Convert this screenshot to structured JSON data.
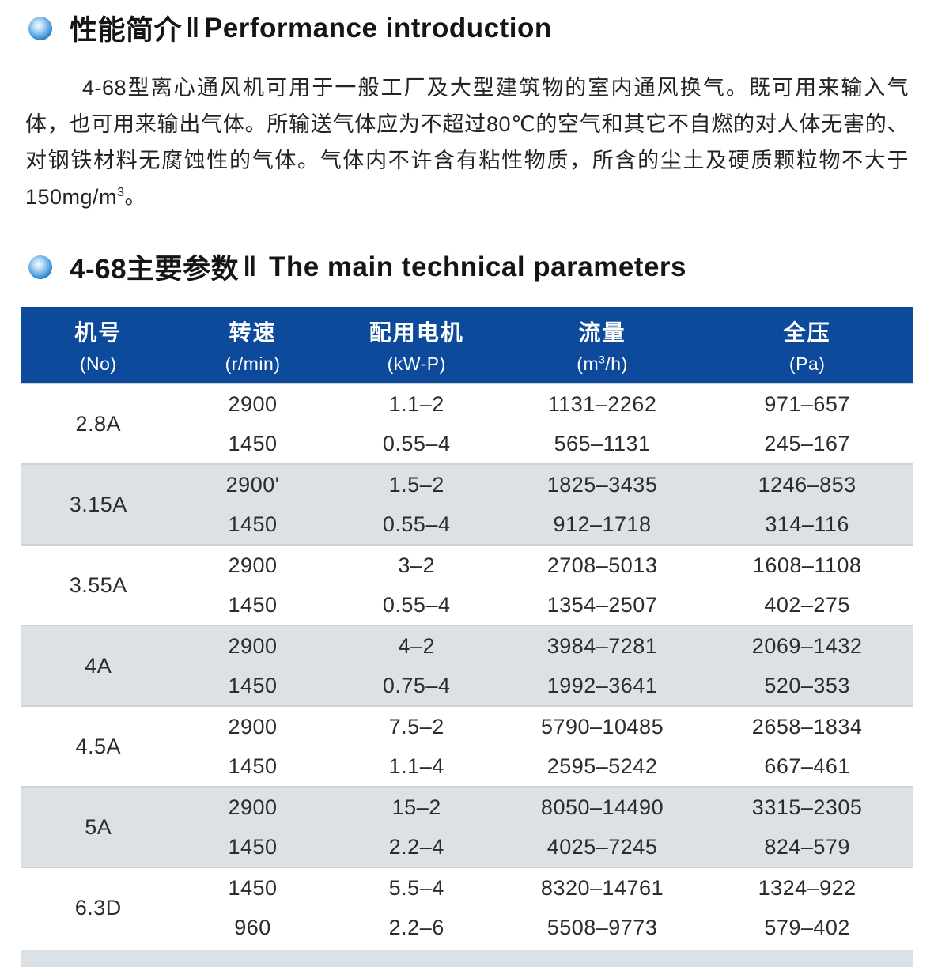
{
  "colors": {
    "header_blue": "#0e4a9c",
    "row_gray": "#dce1e5",
    "bullet_blue": "#0a4f96",
    "text": "#242424"
  },
  "section1": {
    "title_cn": "性能简介",
    "separator": "‖",
    "title_en": "Performance introduction"
  },
  "intro": {
    "body": "4-68型离心通风机可用于一般工厂及大型建筑物的室内通风换气。既可用来输入气体，也可用来输出气体。所输送气体应为不超过80℃的空气和其它不自燃的对人体无害的、对钢铁材料无腐蚀性的气体。气体内不许含有粘性物质，所含的尘土及硬质颗粒物不大于150mg/m",
    "superscript": "3",
    "tail": "。"
  },
  "section2": {
    "title_cn": "4-68主要参数",
    "separator": "‖",
    "title_en": "The main technical parameters"
  },
  "table": {
    "columns": [
      {
        "label_cn": "机号",
        "unit": "(No)"
      },
      {
        "label_cn": "转速",
        "unit": "(r/min)"
      },
      {
        "label_cn": "配用电机",
        "unit": "(kW-P)"
      },
      {
        "label_cn": "流量",
        "unit_pre": "(m",
        "unit_sup": "3",
        "unit_post": "/h)"
      },
      {
        "label_cn": "全压",
        "unit": "(Pa)"
      }
    ],
    "groups": [
      {
        "model": "2.8A",
        "rows": [
          {
            "speed": "2900",
            "motor": "1.1–2",
            "flow": "1131–2262",
            "pressure": "971–657"
          },
          {
            "speed": "1450",
            "motor": "0.55–4",
            "flow": "565–1131",
            "pressure": "245–167"
          }
        ]
      },
      {
        "model": "3.15A",
        "rows": [
          {
            "speed": "2900'",
            "motor": "1.5–2",
            "flow": "1825–3435",
            "pressure": "1246–853"
          },
          {
            "speed": "1450",
            "motor": "0.55–4",
            "flow": "912–1718",
            "pressure": "314–116"
          }
        ]
      },
      {
        "model": "3.55A",
        "rows": [
          {
            "speed": "2900",
            "motor": "3–2",
            "flow": "2708–5013",
            "pressure": "1608–1108"
          },
          {
            "speed": "1450",
            "motor": "0.55–4",
            "flow": "1354–2507",
            "pressure": "402–275"
          }
        ]
      },
      {
        "model": "4A",
        "rows": [
          {
            "speed": "2900",
            "motor": "4–2",
            "flow": "3984–7281",
            "pressure": "2069–1432"
          },
          {
            "speed": "1450",
            "motor": "0.75–4",
            "flow": "1992–3641",
            "pressure": "520–353"
          }
        ]
      },
      {
        "model": "4.5A",
        "rows": [
          {
            "speed": "2900",
            "motor": "7.5–2",
            "flow": "5790–10485",
            "pressure": "2658–1834"
          },
          {
            "speed": "1450",
            "motor": "1.1–4",
            "flow": "2595–5242",
            "pressure": "667–461"
          }
        ]
      },
      {
        "model": "5A",
        "rows": [
          {
            "speed": "2900",
            "motor": "15–2",
            "flow": "8050–14490",
            "pressure": "3315–2305"
          },
          {
            "speed": "1450",
            "motor": "2.2–4",
            "flow": "4025–7245",
            "pressure": "824–579"
          }
        ]
      },
      {
        "model": "6.3D",
        "rows": [
          {
            "speed": "1450",
            "motor": "5.5–4",
            "flow": "8320–14761",
            "pressure": "1324–922"
          },
          {
            "speed": "960",
            "motor": "2.2–6",
            "flow": "5508–9773",
            "pressure": "579–402"
          }
        ]
      }
    ]
  }
}
